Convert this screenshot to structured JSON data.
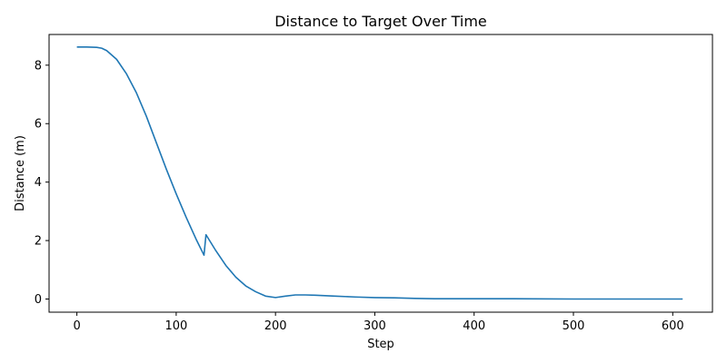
{
  "chart_data": {
    "type": "line",
    "title": "Distance to Target Over Time",
    "xlabel": "Step",
    "ylabel": "Distance (m)",
    "xlim": [
      -28,
      640
    ],
    "ylim": [
      -0.45,
      9.05
    ],
    "xticks": [
      0,
      100,
      200,
      300,
      400,
      500,
      600
    ],
    "yticks": [
      0,
      2,
      4,
      6,
      8
    ],
    "grid": false,
    "line_color": "#1f77b4",
    "series": [
      {
        "x": [
          0,
          10,
          20,
          25,
          30,
          40,
          50,
          60,
          70,
          80,
          90,
          100,
          110,
          120,
          128,
          130,
          140,
          150,
          160,
          170,
          180,
          190,
          200,
          210,
          220,
          230,
          240,
          260,
          280,
          300,
          320,
          340,
          360,
          400,
          440,
          500,
          560,
          610
        ],
        "y": [
          8.62,
          8.62,
          8.61,
          8.58,
          8.5,
          8.2,
          7.7,
          7.05,
          6.25,
          5.35,
          4.45,
          3.6,
          2.8,
          2.05,
          1.5,
          2.2,
          1.65,
          1.15,
          0.75,
          0.45,
          0.25,
          0.1,
          0.05,
          0.1,
          0.14,
          0.14,
          0.13,
          0.1,
          0.07,
          0.05,
          0.04,
          0.02,
          0.01,
          0.01,
          0.01,
          0.0,
          0.0,
          0.0
        ]
      }
    ]
  }
}
